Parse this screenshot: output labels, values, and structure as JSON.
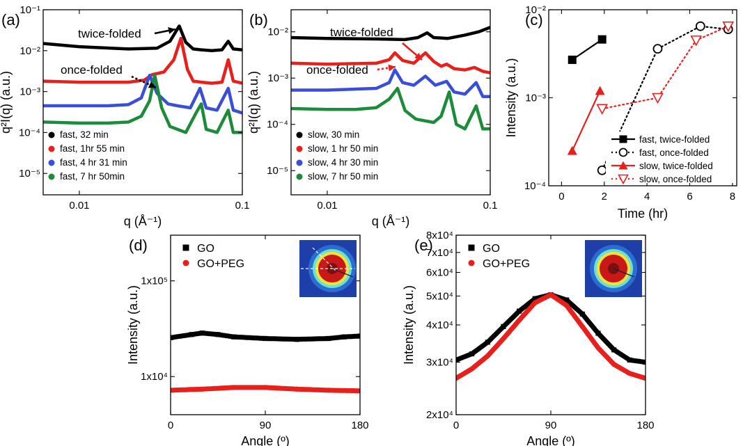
{
  "colors": {
    "black": "#000000",
    "red": "#e8201c",
    "blue": "#3a4fd8",
    "green": "#1c8c3a"
  },
  "chart_data": [
    {
      "panel": "(a)",
      "type": "line",
      "scale": {
        "x": "log",
        "y": "log"
      },
      "xlim": [
        0.006,
        0.1
      ],
      "ylim": [
        3e-06,
        0.1
      ],
      "xlabel": "q (Å⁻¹)",
      "ylabel": "q²I(q) (a.u.)",
      "x_ticks": [
        {
          "value": 0.01,
          "label": "0.01"
        },
        {
          "value": 0.1,
          "label": "0.1"
        }
      ],
      "y_ticks": [
        {
          "value": 0.1,
          "label": "10⁻¹"
        },
        {
          "value": 0.01,
          "label": "10⁻²"
        },
        {
          "value": 0.001,
          "label": "10⁻³"
        },
        {
          "value": 0.0001,
          "label": "10⁻⁴"
        },
        {
          "value": 1e-05,
          "label": "10⁻⁵"
        }
      ],
      "legend_position": "bottom-left",
      "annotations": [
        {
          "text": "twice-folded",
          "x": 0.041
        },
        {
          "text": "once-folded",
          "x": 0.028
        }
      ],
      "series": [
        {
          "name": "fast, 32 min",
          "color": "#000000",
          "points": [
            [
              0.006,
              0.015
            ],
            [
              0.01,
              0.0125
            ],
            [
              0.02,
              0.011
            ],
            [
              0.03,
              0.0115
            ],
            [
              0.036,
              0.017
            ],
            [
              0.041,
              0.04
            ],
            [
              0.045,
              0.016
            ],
            [
              0.05,
              0.011
            ],
            [
              0.056,
              0.0105
            ],
            [
              0.065,
              0.01
            ],
            [
              0.075,
              0.0105
            ],
            [
              0.082,
              0.017
            ],
            [
              0.088,
              0.011
            ],
            [
              0.1,
              0.0105
            ]
          ]
        },
        {
          "name": "fast, 1hr 55 min",
          "color": "#e8201c",
          "points": [
            [
              0.006,
              0.0018
            ],
            [
              0.01,
              0.0017
            ],
            [
              0.02,
              0.0017
            ],
            [
              0.025,
              0.0019
            ],
            [
              0.028,
              0.0026
            ],
            [
              0.033,
              0.003
            ],
            [
              0.038,
              0.006
            ],
            [
              0.042,
              0.02
            ],
            [
              0.046,
              0.0035
            ],
            [
              0.05,
              0.0018
            ],
            [
              0.056,
              0.0017
            ],
            [
              0.065,
              0.0016
            ],
            [
              0.075,
              0.0017
            ],
            [
              0.082,
              0.006
            ],
            [
              0.088,
              0.0018
            ],
            [
              0.1,
              0.0016
            ]
          ]
        },
        {
          "name": "fast, 4 hr 31 min",
          "color": "#3a4fd8",
          "points": [
            [
              0.006,
              0.00045
            ],
            [
              0.01,
              0.00045
            ],
            [
              0.015,
              0.00045
            ],
            [
              0.02,
              0.00048
            ],
            [
              0.024,
              0.0007
            ],
            [
              0.027,
              0.0025
            ],
            [
              0.03,
              0.0009
            ],
            [
              0.035,
              0.0005
            ],
            [
              0.04,
              0.00045
            ],
            [
              0.048,
              0.0004
            ],
            [
              0.055,
              0.0012
            ],
            [
              0.06,
              0.0004
            ],
            [
              0.07,
              0.00035
            ],
            [
              0.082,
              0.0012
            ],
            [
              0.088,
              0.00035
            ],
            [
              0.1,
              0.0003
            ]
          ]
        },
        {
          "name": "fast, 7 hr 50min",
          "color": "#1c8c3a",
          "points": [
            [
              0.006,
              0.00018
            ],
            [
              0.01,
              0.00017
            ],
            [
              0.015,
              0.00017
            ],
            [
              0.02,
              0.00018
            ],
            [
              0.024,
              0.00025
            ],
            [
              0.027,
              0.0006
            ],
            [
              0.029,
              0.0025
            ],
            [
              0.032,
              0.0004
            ],
            [
              0.036,
              0.00014
            ],
            [
              0.045,
              0.0001
            ],
            [
              0.052,
              0.0003
            ],
            [
              0.056,
              0.0005
            ],
            [
              0.06,
              0.00012
            ],
            [
              0.07,
              0.0001
            ],
            [
              0.082,
              0.00035
            ],
            [
              0.088,
              0.0001
            ],
            [
              0.1,
              0.0001
            ]
          ]
        }
      ]
    },
    {
      "panel": "(b)",
      "type": "line",
      "scale": {
        "x": "log",
        "y": "log"
      },
      "xlim": [
        0.006,
        0.1
      ],
      "ylim": [
        3e-06,
        0.03
      ],
      "xlabel": "q (Å⁻¹)",
      "ylabel": "q²I(q) (a.u.)",
      "x_ticks": [
        {
          "value": 0.01,
          "label": "0.01"
        },
        {
          "value": 0.1,
          "label": "0.1"
        }
      ],
      "y_ticks": [
        {
          "value": 0.01,
          "label": "10⁻²"
        },
        {
          "value": 0.001,
          "label": "10⁻³"
        },
        {
          "value": 0.0001,
          "label": "10⁻⁴"
        },
        {
          "value": 1e-05,
          "label": "10⁻⁵"
        }
      ],
      "legend_position": "bottom-left",
      "annotations": [
        {
          "text": "twice-folded",
          "x": 0.041
        },
        {
          "text": "once-folded",
          "x": 0.026
        }
      ],
      "series": [
        {
          "name": "slow, 30 min",
          "color": "#000000",
          "points": [
            [
              0.006,
              0.0075
            ],
            [
              0.01,
              0.0072
            ],
            [
              0.02,
              0.007
            ],
            [
              0.03,
              0.0068
            ],
            [
              0.036,
              0.0075
            ],
            [
              0.041,
              0.0095
            ],
            [
              0.045,
              0.0075
            ],
            [
              0.055,
              0.0072
            ],
            [
              0.07,
              0.0085
            ],
            [
              0.085,
              0.01
            ],
            [
              0.1,
              0.0125
            ]
          ]
        },
        {
          "name": "slow, 1 hr 50 min",
          "color": "#e8201c",
          "points": [
            [
              0.006,
              0.0021
            ],
            [
              0.01,
              0.002
            ],
            [
              0.02,
              0.0021
            ],
            [
              0.024,
              0.0025
            ],
            [
              0.026,
              0.0035
            ],
            [
              0.029,
              0.0024
            ],
            [
              0.034,
              0.0021
            ],
            [
              0.04,
              0.0035
            ],
            [
              0.045,
              0.0023
            ],
            [
              0.05,
              0.0018
            ],
            [
              0.054,
              0.002
            ],
            [
              0.06,
              0.0016
            ],
            [
              0.07,
              0.0015
            ],
            [
              0.08,
              0.0017
            ],
            [
              0.09,
              0.0014
            ],
            [
              0.1,
              0.0013
            ]
          ]
        },
        {
          "name": "slow, 4 hr 30 min",
          "color": "#3a4fd8",
          "points": [
            [
              0.006,
              0.00055
            ],
            [
              0.01,
              0.00055
            ],
            [
              0.02,
              0.0006
            ],
            [
              0.024,
              0.0008
            ],
            [
              0.026,
              0.0015
            ],
            [
              0.029,
              0.0008
            ],
            [
              0.034,
              0.0007
            ],
            [
              0.04,
              0.0011
            ],
            [
              0.046,
              0.0007
            ],
            [
              0.054,
              0.00085
            ],
            [
              0.06,
              0.0005
            ],
            [
              0.07,
              0.00045
            ],
            [
              0.082,
              0.0008
            ],
            [
              0.09,
              0.0004
            ],
            [
              0.1,
              0.0004
            ]
          ]
        },
        {
          "name": "slow, 7 hr 50 min",
          "color": "#1c8c3a",
          "points": [
            [
              0.006,
              0.00022
            ],
            [
              0.01,
              0.00021
            ],
            [
              0.015,
              0.00021
            ],
            [
              0.02,
              0.00023
            ],
            [
              0.024,
              0.00035
            ],
            [
              0.027,
              0.0006
            ],
            [
              0.03,
              0.0002
            ],
            [
              0.035,
              0.00013
            ],
            [
              0.045,
              0.00011
            ],
            [
              0.05,
              0.00015
            ],
            [
              0.056,
              0.0005
            ],
            [
              0.062,
              0.0001
            ],
            [
              0.07,
              8e-05
            ],
            [
              0.082,
              0.00025
            ],
            [
              0.09,
              8e-05
            ],
            [
              0.1,
              8e-05
            ]
          ]
        }
      ]
    },
    {
      "panel": "(c)",
      "type": "line",
      "scale": {
        "x": "linear",
        "y": "log"
      },
      "xlim": [
        -0.6,
        8.2
      ],
      "ylim": [
        0.0001,
        0.01
      ],
      "xlabel": "Time (hr)",
      "ylabel": "Intensity (a.u.)",
      "x_ticks": [
        {
          "value": 0,
          "label": "0"
        },
        {
          "value": 2,
          "label": "2"
        },
        {
          "value": 4,
          "label": "4"
        },
        {
          "value": 6,
          "label": "6"
        },
        {
          "value": 8,
          "label": "8"
        }
      ],
      "y_ticks": [
        {
          "value": 0.01,
          "label": "10⁻²"
        },
        {
          "value": 0.001,
          "label": "10⁻³"
        },
        {
          "value": 0.0001,
          "label": "10⁻⁴"
        }
      ],
      "legend_position": "bottom-right",
      "series": [
        {
          "name": "fast, twice-folded",
          "color": "#000000",
          "marker": "square-filled",
          "dash": "solid",
          "points": [
            [
              0.5,
              0.0027
            ],
            [
              1.9,
              0.0046
            ]
          ]
        },
        {
          "name": "fast, once-folded",
          "color": "#000000",
          "marker": "circle-open",
          "dash": "dotted",
          "points": [
            [
              1.9,
              0.00015
            ],
            [
              4.5,
              0.0036
            ],
            [
              6.5,
              0.0065
            ],
            [
              7.8,
              0.006
            ]
          ]
        },
        {
          "name": "slow, twice-folded",
          "color": "#e8201c",
          "marker": "triangle-filled",
          "dash": "solid",
          "points": [
            [
              0.5,
              0.00025
            ],
            [
              1.8,
              0.0012
            ]
          ]
        },
        {
          "name": "slow, once-folded",
          "color": "#e8201c",
          "marker": "triangle-down-open",
          "dash": "dotted",
          "points": [
            [
              1.9,
              0.00075
            ],
            [
              4.5,
              0.001
            ],
            [
              6.3,
              0.0045
            ],
            [
              7.8,
              0.0065
            ]
          ]
        }
      ]
    },
    {
      "panel": "(d)",
      "type": "scatter",
      "scale": {
        "x": "linear",
        "y": "log"
      },
      "xlim": [
        0,
        180
      ],
      "ylim": [
        4000,
        300000
      ],
      "xlabel": "Angle (º)",
      "ylabel": "Intensity (a.u.)",
      "x_ticks": [
        {
          "value": 0,
          "label": "0"
        },
        {
          "value": 90,
          "label": "90"
        },
        {
          "value": 180,
          "label": "180"
        }
      ],
      "y_ticks": [
        {
          "value": 100000,
          "label": "1x10⁵"
        },
        {
          "value": 10000,
          "label": "1x10⁴"
        }
      ],
      "legend_position": "top-left",
      "inset": "2D scattering pattern with angle φ",
      "series": [
        {
          "name": "GO",
          "color": "#000000",
          "marker": "square-filled",
          "points": [
            [
              0,
              25500
            ],
            [
              20,
              27500
            ],
            [
              30,
              28500
            ],
            [
              45,
              27500
            ],
            [
              60,
              26000
            ],
            [
              90,
              25000
            ],
            [
              120,
              24500
            ],
            [
              150,
              25000
            ],
            [
              165,
              26000
            ],
            [
              180,
              26500
            ]
          ]
        },
        {
          "name": "GO+PEG",
          "color": "#e8201c",
          "marker": "circle-filled",
          "points": [
            [
              0,
              7200
            ],
            [
              30,
              7400
            ],
            [
              60,
              7700
            ],
            [
              90,
              7700
            ],
            [
              120,
              7400
            ],
            [
              150,
              7200
            ],
            [
              180,
              7100
            ]
          ]
        }
      ]
    },
    {
      "panel": "(e)",
      "type": "scatter",
      "scale": {
        "x": "linear",
        "y": "log"
      },
      "xlim": [
        0,
        180
      ],
      "ylim": [
        20000,
        80000
      ],
      "xlabel": "Angle (º)",
      "ylabel": "Intensity (a.u.)",
      "x_ticks": [
        {
          "value": 0,
          "label": "0"
        },
        {
          "value": 90,
          "label": "90"
        },
        {
          "value": 180,
          "label": "180"
        }
      ],
      "y_ticks": [
        {
          "value": 80000,
          "label": "8x10⁴"
        },
        {
          "value": 70000,
          "label": "7x10⁴"
        },
        {
          "value": 60000,
          "label": "6x10⁴"
        },
        {
          "value": 50000,
          "label": "5x10⁴"
        },
        {
          "value": 40000,
          "label": "4x10⁴"
        },
        {
          "value": 30000,
          "label": "3x10⁴"
        },
        {
          "value": 20000,
          "label": "2x10⁴"
        }
      ],
      "legend_position": "top-left",
      "inset": "2D scattering pattern",
      "series": [
        {
          "name": "GO",
          "color": "#000000",
          "marker": "square-filled",
          "points": [
            [
              0,
              30500
            ],
            [
              15,
              32000
            ],
            [
              30,
              35000
            ],
            [
              45,
              39500
            ],
            [
              60,
              44500
            ],
            [
              75,
              49000
            ],
            [
              90,
              50500
            ],
            [
              105,
              48500
            ],
            [
              120,
              43500
            ],
            [
              135,
              37500
            ],
            [
              150,
              33000
            ],
            [
              165,
              30500
            ],
            [
              180,
              30000
            ]
          ]
        },
        {
          "name": "GO+PEG",
          "color": "#e8201c",
          "marker": "circle-filled",
          "points": [
            [
              0,
              26500
            ],
            [
              15,
              28500
            ],
            [
              30,
              31500
            ],
            [
              45,
              36000
            ],
            [
              60,
              41500
            ],
            [
              75,
              47500
            ],
            [
              90,
              50500
            ],
            [
              105,
              46500
            ],
            [
              120,
              39500
            ],
            [
              135,
              33500
            ],
            [
              150,
              29500
            ],
            [
              165,
              27500
            ],
            [
              180,
              26500
            ]
          ]
        }
      ]
    }
  ]
}
